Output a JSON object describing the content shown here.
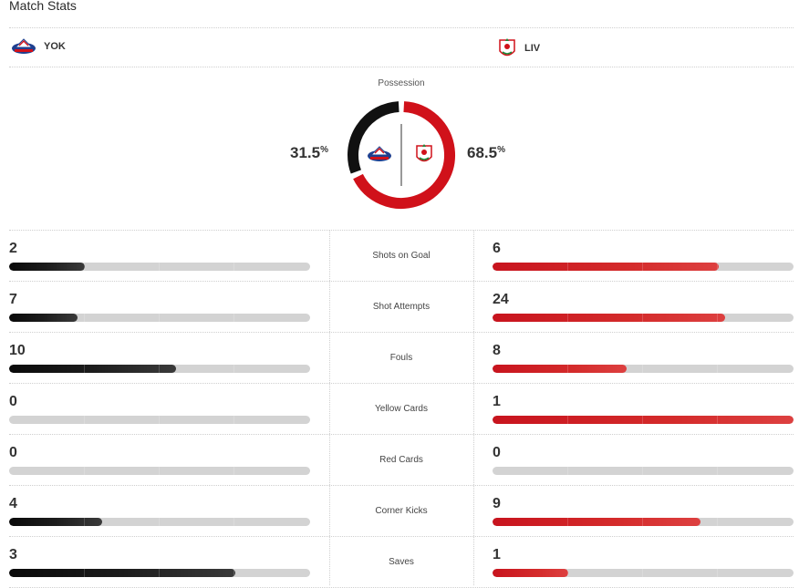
{
  "header": {
    "title": "Match Stats"
  },
  "teams": {
    "home": {
      "abbr": "YOK",
      "color": "#000000"
    },
    "away": {
      "abbr": "LIV",
      "color": "#d0111a"
    }
  },
  "possession": {
    "label": "Possession",
    "home": "31.5",
    "away": "68.5",
    "unit": "%",
    "home_fraction": 0.315
  },
  "stats": [
    {
      "label": "Shots on Goal",
      "home": 2,
      "away": 6
    },
    {
      "label": "Shot Attempts",
      "home": 7,
      "away": 24
    },
    {
      "label": "Fouls",
      "home": 10,
      "away": 8
    },
    {
      "label": "Yellow Cards",
      "home": 0,
      "away": 1
    },
    {
      "label": "Red Cards",
      "home": 0,
      "away": 0
    },
    {
      "label": "Corner Kicks",
      "home": 4,
      "away": 9
    },
    {
      "label": "Saves",
      "home": 3,
      "away": 1
    }
  ]
}
